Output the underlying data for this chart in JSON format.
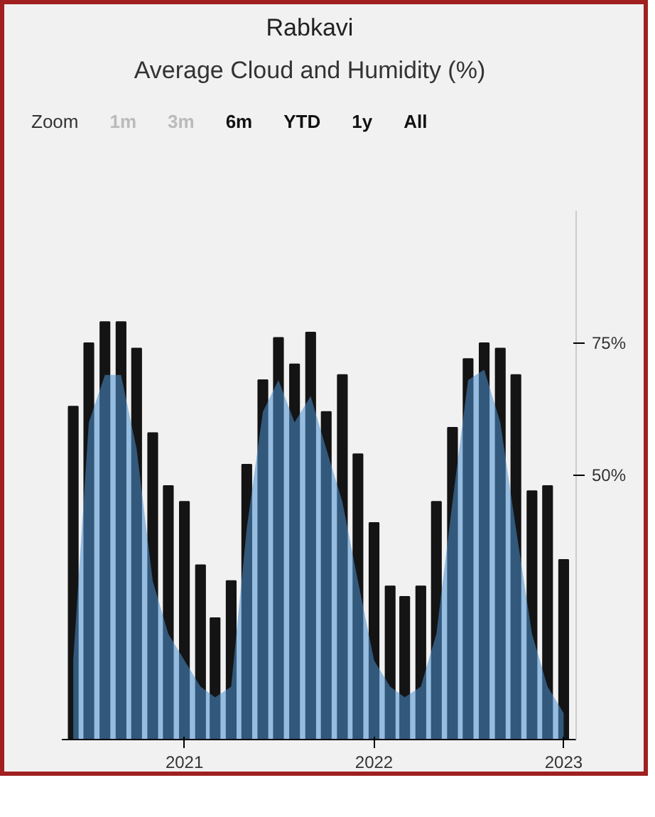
{
  "chart_data": {
    "type": "bar",
    "title": "Rabkavi",
    "subtitle": "Average Cloud and Humidity (%)",
    "annotations": [
      "Zoom",
      "1m",
      "3m",
      "6m",
      "YTD",
      "1y",
      "All"
    ],
    "x": [
      "2020-06",
      "2020-07",
      "2020-08",
      "2020-09",
      "2020-10",
      "2020-11",
      "2020-12",
      "2021-01",
      "2021-02",
      "2021-03",
      "2021-04",
      "2021-05",
      "2021-06",
      "2021-07",
      "2021-08",
      "2021-09",
      "2021-10",
      "2021-11",
      "2021-12",
      "2022-01",
      "2022-02",
      "2022-03",
      "2022-04",
      "2022-05",
      "2022-06",
      "2022-07",
      "2022-08",
      "2022-09",
      "2022-10",
      "2022-11",
      "2022-12",
      "2023-01"
    ],
    "series": [
      {
        "type": "area",
        "color": "#4a90d0",
        "values": [
          15,
          60,
          69,
          69,
          55,
          30,
          20,
          15,
          10,
          8,
          10,
          40,
          62,
          68,
          60,
          65,
          55,
          45,
          30,
          15,
          10,
          8,
          10,
          20,
          45,
          68,
          70,
          60,
          40,
          20,
          10,
          5
        ]
      },
      {
        "color": "#141414",
        "values": [
          63,
          75,
          79,
          79,
          74,
          58,
          48,
          45,
          33,
          23,
          30,
          52,
          68,
          76,
          71,
          77,
          62,
          69,
          54,
          41,
          29,
          27,
          29,
          45,
          59,
          72,
          75,
          74,
          69,
          47,
          48,
          34
        ]
      }
    ],
    "ylim": [
      0,
      100
    ],
    "yticks": [
      {
        "value": 50,
        "label": "50%"
      },
      {
        "value": 75,
        "label": "75%"
      }
    ],
    "xlim": [
      "2020-05-10",
      "2023-01-25"
    ],
    "xticks": [
      {
        "value": "2021-01-01",
        "label": "2021"
      },
      {
        "value": "2022-01-01",
        "label": "2022"
      },
      {
        "value": "2023-01-01",
        "label": "2023"
      }
    ],
    "grid": false
  }
}
